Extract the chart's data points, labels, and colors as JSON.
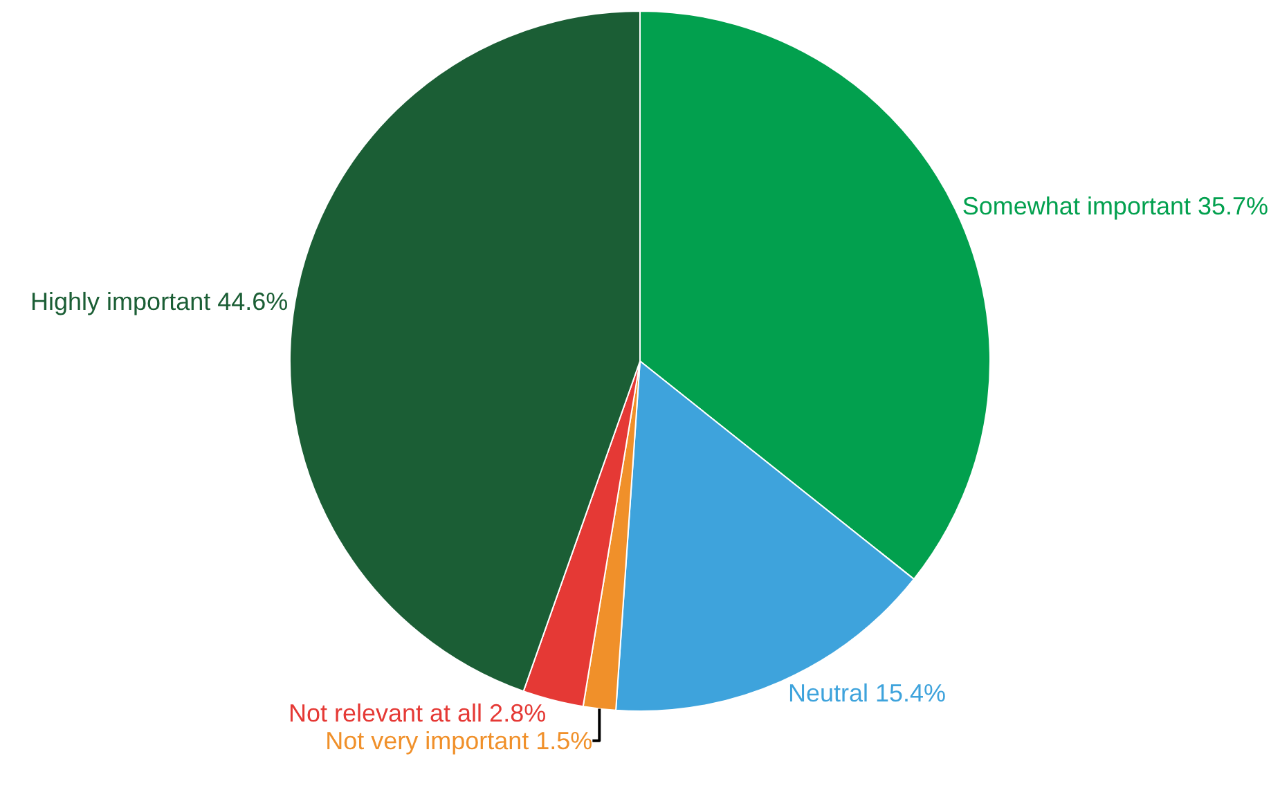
{
  "chart_data": {
    "type": "pie",
    "categories": [
      "Somewhat important",
      "Neutral",
      "Not very important",
      "Not relevant at all",
      "Highly important"
    ],
    "values": [
      35.7,
      15.4,
      1.5,
      2.8,
      44.6
    ],
    "value_labels": [
      "35.7%",
      "15.4%",
      "1.5%",
      "2.8%",
      "44.6%"
    ],
    "colors": [
      "#02a04e",
      "#3ea3dc",
      "#f0902a",
      "#e53935",
      "#1b5e35"
    ],
    "legend": false
  }
}
